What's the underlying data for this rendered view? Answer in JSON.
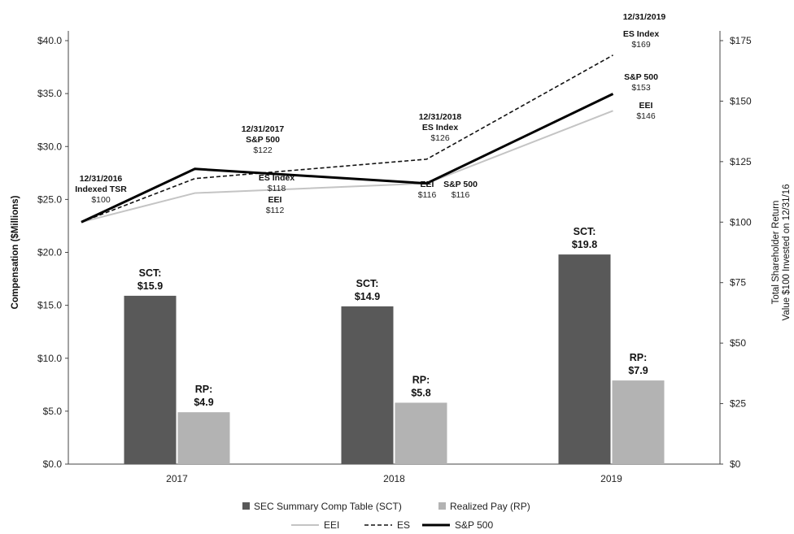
{
  "chart_data": {
    "type": "bar+line",
    "categories": [
      "2017",
      "2018",
      "2019"
    ],
    "left_axis": {
      "label": "Compensation ($Millions)",
      "ylim": [
        0,
        40
      ],
      "ticks": [
        "$0.0",
        "$5.0",
        "$10.0",
        "$15.0",
        "$20.0",
        "$25.0",
        "$30.0",
        "$35.0",
        "$40.0"
      ]
    },
    "right_axis": {
      "label_line1": "Total Shareholder Return",
      "label_line2": "Value $100 Invested on 12/31/16",
      "ylim": [
        0,
        175
      ],
      "ticks": [
        "$0",
        "$25",
        "$50",
        "$75",
        "$100",
        "$125",
        "$150",
        "$175"
      ]
    },
    "bar_series": [
      {
        "name": "SEC Summary Comp Table (SCT)",
        "color": "#595959",
        "values": [
          15.9,
          14.9,
          19.8
        ],
        "labels": [
          [
            "SCT:",
            "$15.9"
          ],
          [
            "SCT:",
            "$14.9"
          ],
          [
            "SCT:",
            "$19.8"
          ]
        ]
      },
      {
        "name": "Realized Pay (RP)",
        "color": "#b3b3b3",
        "values": [
          4.9,
          5.8,
          7.9
        ],
        "labels": [
          [
            "RP:",
            "$4.9"
          ],
          [
            "RP:",
            "$5.8"
          ],
          [
            "RP:",
            "$7.9"
          ]
        ]
      }
    ],
    "line_x": [
      "12/31/2016",
      "12/31/2017",
      "12/31/2018",
      "12/31/2019"
    ],
    "line_series": [
      {
        "name": "EEI",
        "color": "#c4c4c4",
        "style": "solid",
        "values": [
          100,
          112,
          116,
          146
        ]
      },
      {
        "name": "ES",
        "color": "#111111",
        "style": "dashed",
        "values": [
          100,
          118,
          126,
          169
        ]
      },
      {
        "name": "S&P 500",
        "color": "#000000",
        "style": "bold",
        "values": [
          100,
          122,
          116,
          153
        ]
      }
    ],
    "annotations": [
      {
        "lines": [
          "12/31/2016",
          "Indexed TSR",
          "$100"
        ]
      },
      {
        "lines": [
          "12/31/2017",
          "S&P 500",
          "$122"
        ]
      },
      {
        "lines": [
          "ES Index",
          "$118"
        ]
      },
      {
        "lines": [
          "EEI",
          "$112"
        ]
      },
      {
        "lines": [
          "12/31/2018",
          "ES Index",
          "$126"
        ]
      },
      {
        "lines": [
          "EEI",
          "$116"
        ]
      },
      {
        "lines": [
          "S&P 500",
          "$116"
        ]
      },
      {
        "lines": [
          "12/31/2019"
        ]
      },
      {
        "lines": [
          "ES Index",
          "$169"
        ]
      },
      {
        "lines": [
          "S&P 500",
          "$153"
        ]
      },
      {
        "lines": [
          "EEI",
          "$146"
        ]
      }
    ],
    "legend_bars": [
      "SEC Summary Comp Table (SCT)",
      "Realized Pay (RP)"
    ],
    "legend_lines": [
      "EEI",
      "ES",
      "S&P 500"
    ],
    "grid": false,
    "legend_position": "bottom"
  }
}
